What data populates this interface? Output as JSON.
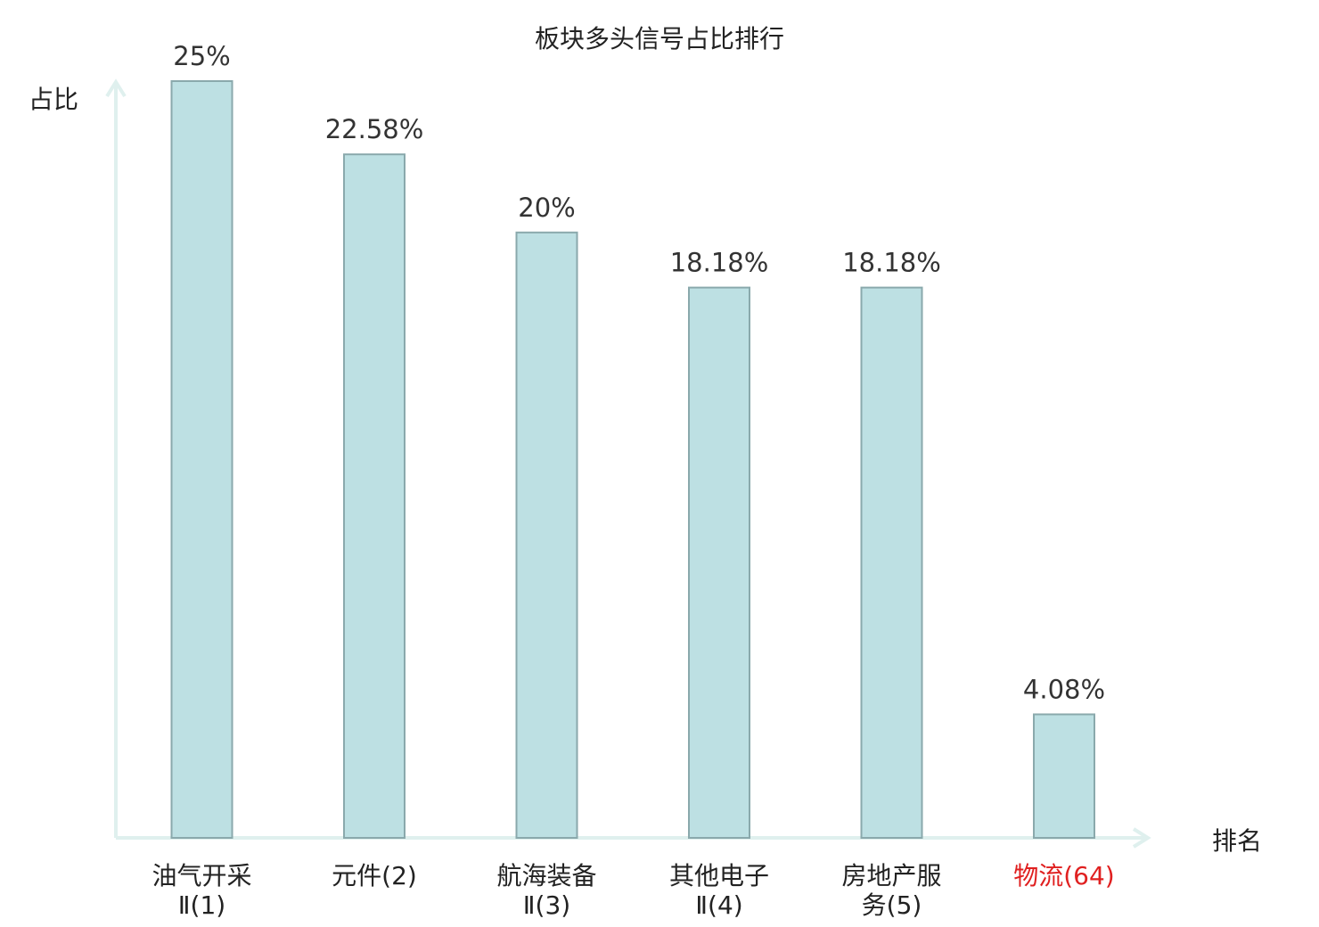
{
  "chart_data": {
    "type": "bar",
    "title": "板块多头信号占比排行",
    "ylabel": "占比",
    "xlabel": "排名",
    "categories": [
      {
        "lines": [
          "油气开采",
          "Ⅱ(1)"
        ]
      },
      {
        "lines": [
          "元件(2)"
        ]
      },
      {
        "lines": [
          "航海装备",
          "Ⅱ(3)"
        ]
      },
      {
        "lines": [
          "其他电子",
          "Ⅱ(4)"
        ]
      },
      {
        "lines": [
          "房地产服",
          "务(5)"
        ]
      },
      {
        "lines": [
          "物流(64)"
        ],
        "highlight": true
      }
    ],
    "values": [
      25,
      22.58,
      20,
      18.18,
      18.18,
      4.08
    ],
    "value_labels": [
      "25%",
      "22.58%",
      "20%",
      "18.18%",
      "18.18%",
      "4.08%"
    ],
    "ylim": [
      0,
      25
    ],
    "grid": false,
    "colors": {
      "bar_fill": "#bde0e3",
      "bar_stroke": "#8aa9ac",
      "axis": "#dff0ee",
      "highlight_text": "#e02020"
    }
  }
}
